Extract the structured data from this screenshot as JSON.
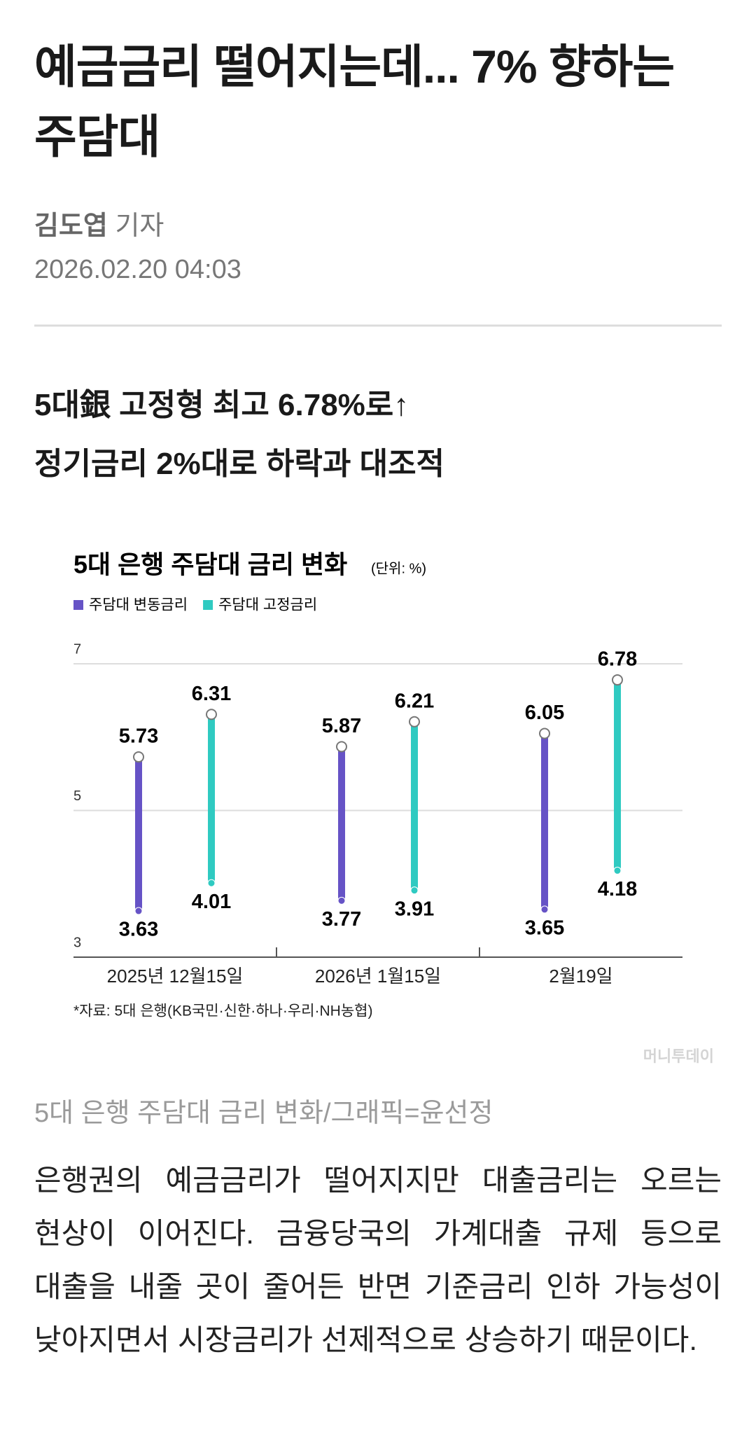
{
  "article": {
    "title": [
      "예금금리 떨어지는데... 7% 향하는",
      "주담대"
    ],
    "byline": {
      "name": "김도엽",
      "role": "기자"
    },
    "date": "2026.02.20 04:03",
    "subtitle": [
      "5대銀 고정형 최고 6.78%로↑",
      "정기금리 2%대로 하락과 대조적"
    ],
    "watermark": "머니투데이",
    "caption": "5대 은행 주담대 금리 변화/그래픽=윤선정",
    "body": "은행권의 예금금리가 떨어지지만 대출금리는 오르는 현상이 이어진다. 금융당국의 가계대출 규제 등으로 대출을 내줄 곳이 줄어든 반면 기준금리 인하 가능성이 낮아지면서 시장금리가 선제적으로 상승하기 때문이다."
  },
  "chart_data": {
    "type": "range",
    "title": "5대 은행 주담대 금리 변화",
    "unit": "(단위: %)",
    "categories": [
      "2025년 12월15일",
      "2026년 1월15일",
      "2월19일"
    ],
    "series": [
      {
        "name": "주담대 변동금리",
        "color": "#6653c6",
        "low": [
          3.63,
          3.77,
          3.65
        ],
        "high": [
          5.73,
          5.87,
          6.05
        ]
      },
      {
        "name": "주담대 고정금리",
        "color": "#2fcac1",
        "low": [
          4.01,
          3.91,
          4.18
        ],
        "high": [
          6.31,
          6.21,
          6.78
        ]
      }
    ],
    "ylim": [
      3,
      7
    ],
    "yticks": [
      3,
      5,
      7
    ],
    "grid": true,
    "source": "*자료: 5대 은행(KB국민·신한·하나·우리·NH농협)"
  }
}
